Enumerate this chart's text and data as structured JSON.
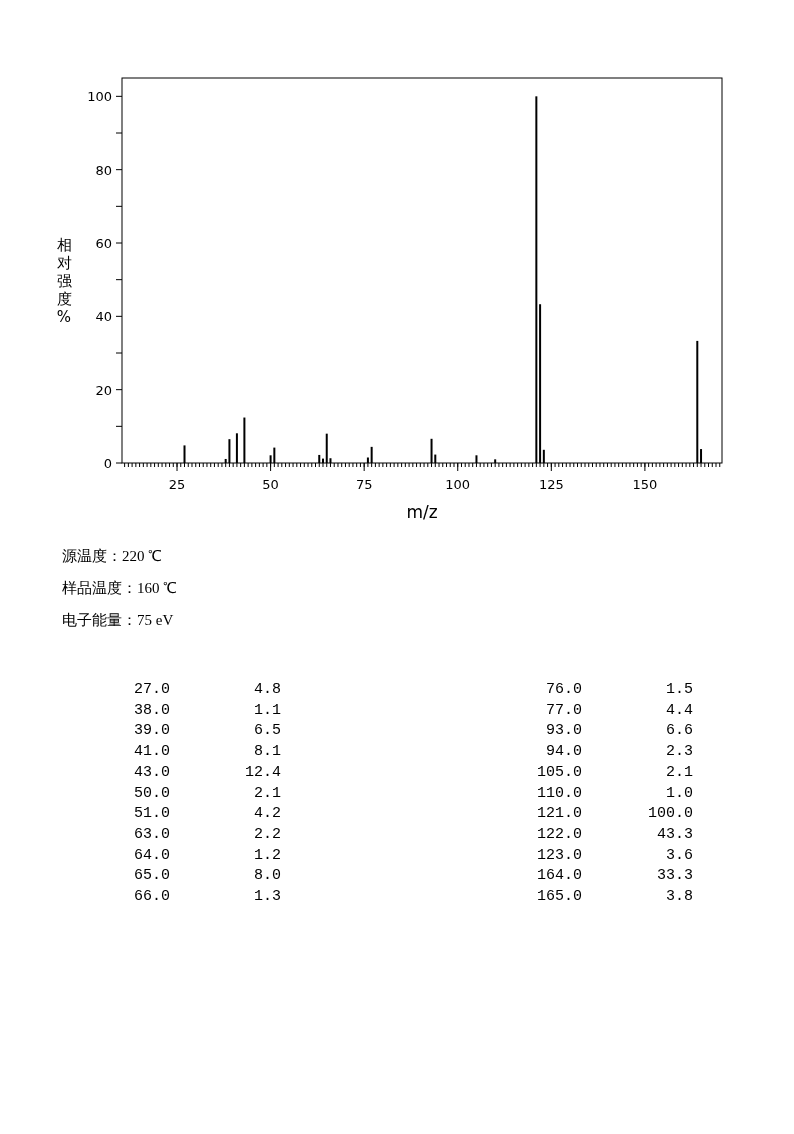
{
  "chart_data": {
    "type": "bar",
    "xlabel": "m/z",
    "ylabel": "相对强度%",
    "x": [
      27,
      38,
      39,
      41,
      43,
      50,
      51,
      63,
      64,
      65,
      66,
      76,
      77,
      93,
      94,
      105,
      110,
      121,
      122,
      123,
      164,
      165
    ],
    "values": [
      4.8,
      1.1,
      6.5,
      8.1,
      12.4,
      2.1,
      4.2,
      2.2,
      1.2,
      8.0,
      1.3,
      1.5,
      4.4,
      6.6,
      2.3,
      2.1,
      1.0,
      100.0,
      43.3,
      3.6,
      33.3,
      3.8
    ],
    "color": "#000000",
    "xlim": [
      10.3,
      170.6
    ],
    "xticks": [
      25,
      50,
      75,
      100,
      125,
      150
    ],
    "ylim": [
      0,
      105
    ],
    "yticks": [
      0,
      {
        "value": 10,
        "label": null
      },
      20,
      {
        "value": 30,
        "label": null
      },
      40,
      {
        "value": 50,
        "label": null
      },
      60,
      {
        "value": 70,
        "label": null
      },
      80,
      {
        "value": 90,
        "label": null
      },
      100
    ],
    "grid": false,
    "annotations": [
      "源温度：220 ℃",
      "样品温度：160 ℃",
      "电子能量：75 eV",
      "27.0",
      "4.8",
      "38.0",
      "1.1",
      "39.0",
      "6.5",
      "41.0",
      "8.1",
      "43.0",
      "12.4",
      "50.0",
      "2.1",
      "51.0",
      "4.2",
      "63.0",
      "2.2",
      "64.0",
      "1.2",
      "65.0",
      "8.0",
      "66.0",
      "1.3",
      "76.0",
      "1.5",
      "77.0",
      "4.4",
      "93.0",
      "6.6",
      "94.0",
      "2.3",
      "105.0",
      "2.1",
      "110.0",
      "1.0",
      "121.0",
      "100.0",
      "122.0",
      "43.3",
      "123.0",
      "3.6",
      "164.0",
      "33.3",
      "165.0",
      "3.8"
    ]
  }
}
